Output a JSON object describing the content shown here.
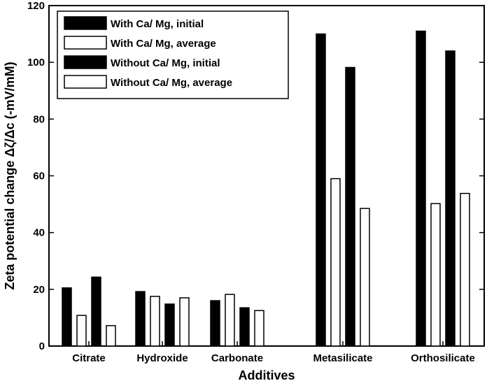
{
  "chart_data": {
    "type": "bar",
    "xlabel": "Additives",
    "ylabel": "Zeta potential change Δζ/Δc (-mV/mM)",
    "ylim": [
      0,
      120
    ],
    "yticks": [
      0,
      20,
      40,
      60,
      80,
      100,
      120
    ],
    "grid": false,
    "legend_position": "top-left",
    "categories": [
      "Citrate",
      "Hydroxide",
      "Carbonate",
      "Metasilicate",
      "Orthosilicate"
    ],
    "series": [
      {
        "name": "With Ca/ Mg, initial",
        "fill": "#000000",
        "values": [
          20.5,
          19.2,
          16.0,
          110.0,
          111.0
        ]
      },
      {
        "name": "With Ca/ Mg, average",
        "fill": "#ffffff",
        "values": [
          10.8,
          17.5,
          18.2,
          59.0,
          50.2
        ]
      },
      {
        "name": "Without Ca/ Mg, initial",
        "fill": "#000000",
        "values": [
          24.3,
          14.8,
          13.5,
          98.2,
          104.0
        ]
      },
      {
        "name": "Without Ca/ Mg, average",
        "fill": "#ffffff",
        "values": [
          7.2,
          17.0,
          12.5,
          48.5,
          53.8
        ]
      }
    ]
  }
}
